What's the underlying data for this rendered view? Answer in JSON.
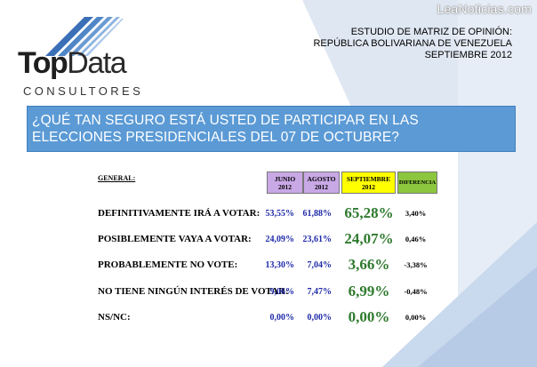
{
  "watermark": "LeaNoticias.com",
  "logo": {
    "word_top": "Top",
    "word_data": "Data",
    "sub": "CONSULTORES"
  },
  "study": {
    "line1": "ESTUDIO DE MATRIZ DE OPINIÓN:",
    "line2": "REPÚBLICA BOLIVARIANA DE VENEZUELA",
    "line3": "SEPTIEMBRE 2012"
  },
  "question": "¿QUÉ TAN SEGURO ESTÁ USTED DE PARTICIPAR EN LAS ELECCIONES PRESIDENCIALES DEL 07 DE OCTUBRE?",
  "table": {
    "section_label": "GENERAL:",
    "headers": {
      "junio": "JUNIO 2012",
      "agosto": "AGOSTO 2012",
      "septiembre": "SEPTIEMBRE 2012",
      "diferencia": "DIFERENCIA"
    },
    "rows": [
      {
        "label": "DEFINITIVAMENTE IRÁ A VOTAR:",
        "junio": "53,55%",
        "agosto": "61,88%",
        "septiembre": "65,28%",
        "diferencia": "3,40%"
      },
      {
        "label": "POSIBLEMENTE VAYA A VOTAR:",
        "junio": "24,09%",
        "agosto": "23,61%",
        "septiembre": "24,07%",
        "diferencia": "0,46%"
      },
      {
        "label": "PROBABLEMENTE NO VOTE:",
        "junio": "13,30%",
        "agosto": "7,04%",
        "septiembre": "3,66%",
        "diferencia": "-3,38%"
      },
      {
        "label": "NO TIENE NINGÚN INTERÉS DE VOTAR:",
        "junio": "9,06%",
        "agosto": "7,47%",
        "septiembre": "6,99%",
        "diferencia": "-0,48%"
      },
      {
        "label": "NS/NC:",
        "junio": "0,00%",
        "agosto": "0,00%",
        "septiembre": "0,00%",
        "diferencia": "0,00%"
      }
    ]
  },
  "colors": {
    "question_bar": "#5b9ad5",
    "header_months": "#c9a8e6",
    "header_september": "#ffff00",
    "header_difference": "#8cc63e",
    "value_blue": "#1f2aa8",
    "value_green": "#2e7a2e"
  }
}
